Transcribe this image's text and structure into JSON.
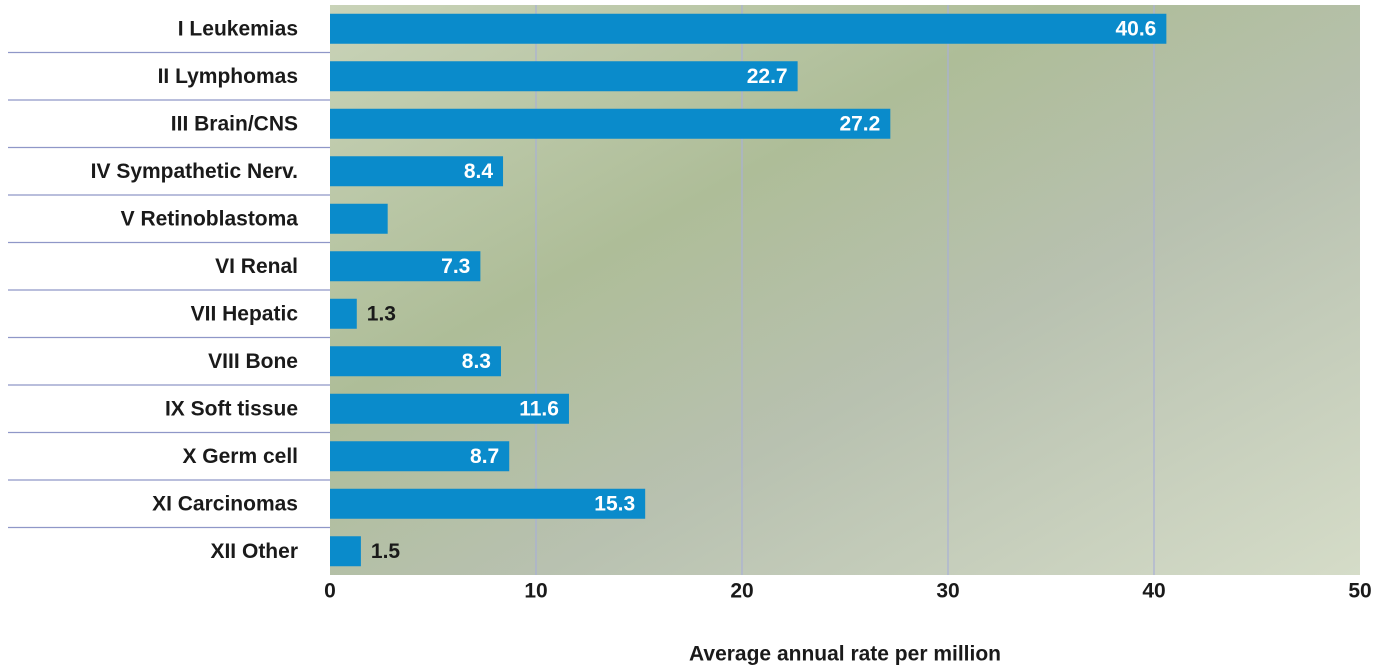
{
  "chart_data": {
    "type": "bar",
    "orientation": "horizontal",
    "x_label": "Average annual rate per million",
    "categories": [
      "I Leukemias",
      "II Lymphomas",
      "III Brain/CNS",
      "IV Sympathetic Nerv.",
      "V Retinoblastoma",
      "VI Renal",
      "VII Hepatic",
      "VIII Bone",
      "IX Soft tissue",
      "X Germ cell",
      "XI Carcinomas",
      "XII Other"
    ],
    "values": [
      40.6,
      22.7,
      27.2,
      8.4,
      2.8,
      7.3,
      1.3,
      8.3,
      11.6,
      8.7,
      15.3,
      1.5
    ],
    "value_labels": [
      "40.6",
      "22.7",
      "27.2",
      "8.4",
      null,
      "7.3",
      "1.3",
      "8.3",
      "11.6",
      "8.7",
      "15.3",
      "1.5"
    ],
    "color": "#0a8bcb",
    "xlim": [
      0,
      50
    ],
    "xticks": [
      0,
      10,
      20,
      30,
      40,
      50
    ],
    "grid": true
  }
}
